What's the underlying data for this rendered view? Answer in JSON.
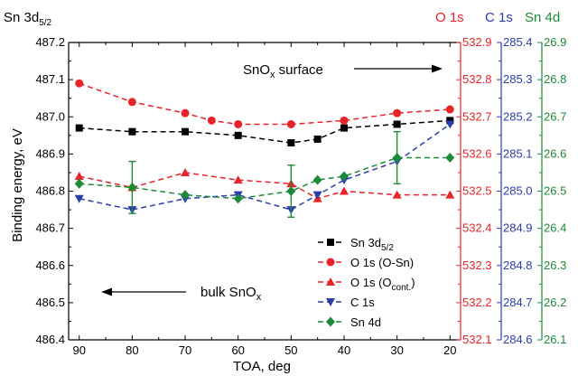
{
  "chart_data": {
    "type": "scatter",
    "title": "",
    "xlabel": "TOA, deg",
    "x_reversed": true,
    "xlim": [
      92,
      18
    ],
    "xticks": [
      "90",
      "80",
      "70",
      "60",
      "50",
      "40",
      "30",
      "20"
    ],
    "axes": {
      "left": {
        "label_main": "Sn 3d",
        "label_sub": "5/2",
        "ylabel": "Binding energy, eV",
        "ylim": [
          486.4,
          487.2
        ],
        "ticks": [
          "486.4",
          "486.5",
          "486.6",
          "486.7",
          "486.8",
          "486.9",
          "487.0",
          "487.1",
          "487.2"
        ],
        "color": "#000000"
      },
      "o1s": {
        "label": "O 1s",
        "ylim": [
          532.1,
          532.9
        ],
        "ticks": [
          "532.1",
          "532.2",
          "532.3",
          "532.4",
          "532.5",
          "532.6",
          "532.7",
          "532.8",
          "532.9"
        ],
        "color": "#e8232a"
      },
      "c1s": {
        "label": "C 1s",
        "ylim": [
          284.6,
          285.4
        ],
        "ticks": [
          "284.6",
          "284.7",
          "284.8",
          "284.9",
          "285.0",
          "285.1",
          "285.2",
          "285.3",
          "285.4"
        ],
        "color": "#2a3dab"
      },
      "sn4d": {
        "label": "Sn 4d",
        "ylim": [
          26.1,
          26.9
        ],
        "ticks": [
          "26.1",
          "26.2",
          "26.3",
          "26.4",
          "26.5",
          "26.6",
          "26.7",
          "26.8",
          "26.9"
        ],
        "color": "#1d8a38"
      }
    },
    "series": [
      {
        "legend": "Sn 3d",
        "legend_sub": "5/2",
        "marker": "square",
        "color": "#000000",
        "axis": "left",
        "x": [
          90,
          80,
          70,
          60,
          50,
          45,
          40,
          30,
          20
        ],
        "y": [
          486.97,
          486.96,
          486.96,
          486.95,
          486.93,
          486.94,
          486.97,
          486.98,
          486.99
        ]
      },
      {
        "legend": "O 1s (O-Sn)",
        "marker": "circle",
        "color": "#e8232a",
        "axis": "o1s",
        "x": [
          90,
          80,
          70,
          65,
          60,
          50,
          40,
          30,
          20
        ],
        "y": [
          532.79,
          532.74,
          532.71,
          532.69,
          532.68,
          532.68,
          532.69,
          532.71,
          532.72
        ]
      },
      {
        "legend": "O 1s (O",
        "legend_sub": "cont.",
        "legend_tail": ")",
        "marker": "triangle-up",
        "color": "#e8232a",
        "axis": "o1s",
        "x": [
          90,
          80,
          70,
          60,
          50,
          45,
          40,
          30,
          20
        ],
        "y": [
          532.54,
          532.51,
          532.55,
          532.53,
          532.52,
          532.48,
          532.5,
          532.49,
          532.49
        ]
      },
      {
        "legend": "C 1s",
        "marker": "triangle-down",
        "color": "#2a3dab",
        "axis": "c1s",
        "x": [
          90,
          80,
          70,
          60,
          50,
          45,
          40,
          30,
          20
        ],
        "y": [
          284.98,
          284.95,
          284.98,
          284.99,
          284.95,
          284.99,
          285.03,
          285.08,
          285.18
        ]
      },
      {
        "legend": "Sn 4d",
        "marker": "diamond",
        "color": "#1d8a38",
        "axis": "sn4d",
        "x": [
          90,
          80,
          70,
          60,
          50,
          45,
          40,
          30,
          20
        ],
        "y": [
          26.52,
          26.51,
          26.49,
          26.48,
          26.5,
          26.53,
          26.54,
          26.59,
          26.59
        ],
        "error_bars": [
          {
            "x": 80,
            "y": 26.51,
            "err": 0.07
          },
          {
            "x": 50,
            "y": 26.5,
            "err": 0.07
          },
          {
            "x": 30,
            "y": 26.59,
            "err": 0.07
          }
        ]
      }
    ],
    "annotations": [
      {
        "text_main": "SnO",
        "text_sub": "x",
        "text_tail": " surface",
        "arrow": "right"
      },
      {
        "text_main": "bulk SnO",
        "text_sub": "x",
        "text_tail": "",
        "arrow": "left"
      }
    ],
    "legend_position": "center-right",
    "grid": false
  }
}
